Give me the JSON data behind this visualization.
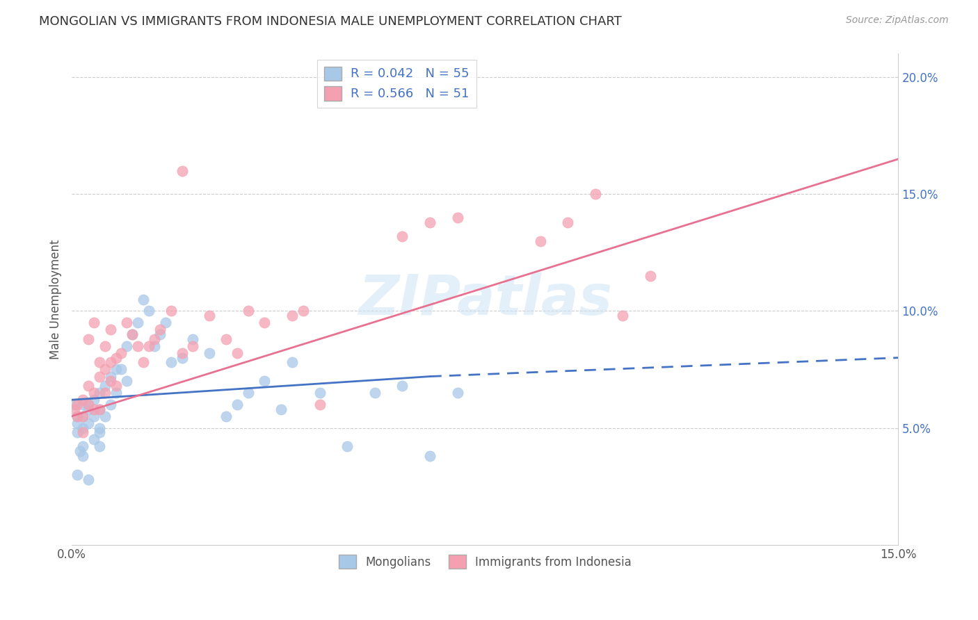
{
  "title": "MONGOLIAN VS IMMIGRANTS FROM INDONESIA MALE UNEMPLOYMENT CORRELATION CHART",
  "source": "Source: ZipAtlas.com",
  "ylabel": "Male Unemployment",
  "xlim": [
    0.0,
    0.15
  ],
  "ylim": [
    0.0,
    0.21
  ],
  "xticks": [
    0.0,
    0.03,
    0.06,
    0.09,
    0.12,
    0.15
  ],
  "xtick_labels": [
    "0.0%",
    "",
    "",
    "",
    "",
    "15.0%"
  ],
  "yticks_right": [
    0.05,
    0.1,
    0.15,
    0.2
  ],
  "ytick_labels_right": [
    "5.0%",
    "10.0%",
    "15.0%",
    "20.0%"
  ],
  "mongolians_color": "#a8c8e8",
  "indonesia_color": "#f4a0b0",
  "trendline_mongolians_solid_color": "#4472c4",
  "trendline_mongolians_dash_color": "#4472c4",
  "trendline_indonesia_color": "#e87090",
  "watermark": "ZIPatlas",
  "mongolians_x": [
    0.0005,
    0.001,
    0.001,
    0.001,
    0.0015,
    0.002,
    0.002,
    0.002,
    0.002,
    0.003,
    0.003,
    0.003,
    0.004,
    0.004,
    0.005,
    0.005,
    0.005,
    0.005,
    0.006,
    0.006,
    0.007,
    0.007,
    0.008,
    0.008,
    0.009,
    0.01,
    0.01,
    0.011,
    0.012,
    0.013,
    0.014,
    0.015,
    0.016,
    0.017,
    0.018,
    0.02,
    0.022,
    0.025,
    0.028,
    0.03,
    0.032,
    0.035,
    0.038,
    0.04,
    0.045,
    0.05,
    0.055,
    0.06,
    0.065,
    0.07,
    0.001,
    0.002,
    0.003,
    0.004,
    0.005
  ],
  "mongolians_y": [
    0.06,
    0.055,
    0.052,
    0.048,
    0.04,
    0.05,
    0.055,
    0.06,
    0.042,
    0.06,
    0.058,
    0.052,
    0.062,
    0.055,
    0.065,
    0.058,
    0.05,
    0.042,
    0.068,
    0.055,
    0.072,
    0.06,
    0.075,
    0.065,
    0.075,
    0.085,
    0.07,
    0.09,
    0.095,
    0.105,
    0.1,
    0.085,
    0.09,
    0.095,
    0.078,
    0.08,
    0.088,
    0.082,
    0.055,
    0.06,
    0.065,
    0.07,
    0.058,
    0.078,
    0.065,
    0.042,
    0.065,
    0.068,
    0.038,
    0.065,
    0.03,
    0.038,
    0.028,
    0.045,
    0.048
  ],
  "indonesia_x": [
    0.0005,
    0.001,
    0.001,
    0.002,
    0.002,
    0.002,
    0.003,
    0.003,
    0.004,
    0.004,
    0.005,
    0.005,
    0.006,
    0.006,
    0.007,
    0.007,
    0.008,
    0.008,
    0.009,
    0.01,
    0.011,
    0.012,
    0.013,
    0.014,
    0.015,
    0.016,
    0.018,
    0.02,
    0.022,
    0.025,
    0.028,
    0.03,
    0.032,
    0.035,
    0.04,
    0.042,
    0.045,
    0.06,
    0.065,
    0.07,
    0.085,
    0.09,
    0.095,
    0.1,
    0.105,
    0.003,
    0.004,
    0.005,
    0.006,
    0.007,
    0.02
  ],
  "indonesia_y": [
    0.058,
    0.06,
    0.055,
    0.062,
    0.055,
    0.048,
    0.068,
    0.06,
    0.065,
    0.058,
    0.072,
    0.058,
    0.075,
    0.065,
    0.078,
    0.07,
    0.08,
    0.068,
    0.082,
    0.095,
    0.09,
    0.085,
    0.078,
    0.085,
    0.088,
    0.092,
    0.1,
    0.082,
    0.085,
    0.098,
    0.088,
    0.082,
    0.1,
    0.095,
    0.098,
    0.1,
    0.06,
    0.132,
    0.138,
    0.14,
    0.13,
    0.138,
    0.15,
    0.098,
    0.115,
    0.088,
    0.095,
    0.078,
    0.085,
    0.092,
    0.16
  ],
  "trendline_mong_x0": 0.0,
  "trendline_mong_y0": 0.062,
  "trendline_mong_x1": 0.065,
  "trendline_mong_y1": 0.072,
  "trendline_mong_dash_x0": 0.065,
  "trendline_mong_dash_y0": 0.072,
  "trendline_mong_dash_x1": 0.15,
  "trendline_mong_dash_y1": 0.08,
  "trendline_indo_x0": 0.0,
  "trendline_indo_y0": 0.055,
  "trendline_indo_x1": 0.15,
  "trendline_indo_y1": 0.165
}
